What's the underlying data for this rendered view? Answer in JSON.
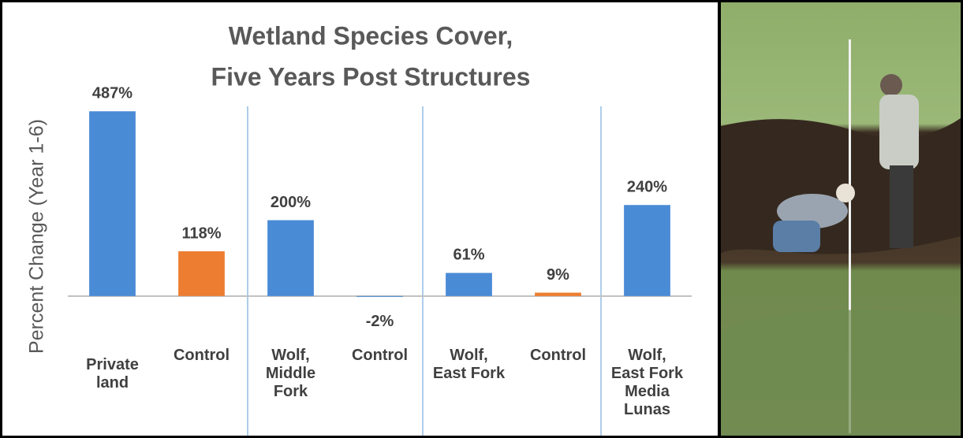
{
  "chart_data": {
    "type": "bar",
    "title": "Wetland Species Cover,",
    "subtitle": "Five Years Post Structures",
    "y_label": "Percent Change (Year 1-6)",
    "categories": [
      "Private\nland",
      "Control",
      "Wolf,\nMiddle\nFork",
      "Control",
      "Wolf,\nEast Fork",
      "Control",
      "Wolf,\nEast Fork\nMedia\nLunas"
    ],
    "values": [
      487,
      118,
      200,
      -2,
      61,
      9,
      240
    ],
    "value_labels": [
      "487%",
      "118%",
      "200%",
      "-2%",
      "61%",
      "9%",
      "240%"
    ],
    "colors": [
      "#4a8bd6",
      "#ed7d31",
      "#4a8bd6",
      "#4a8bd6",
      "#4a8bd6",
      "#ed7d31",
      "#4a8bd6"
    ],
    "ylim": [
      -100,
      500
    ]
  }
}
